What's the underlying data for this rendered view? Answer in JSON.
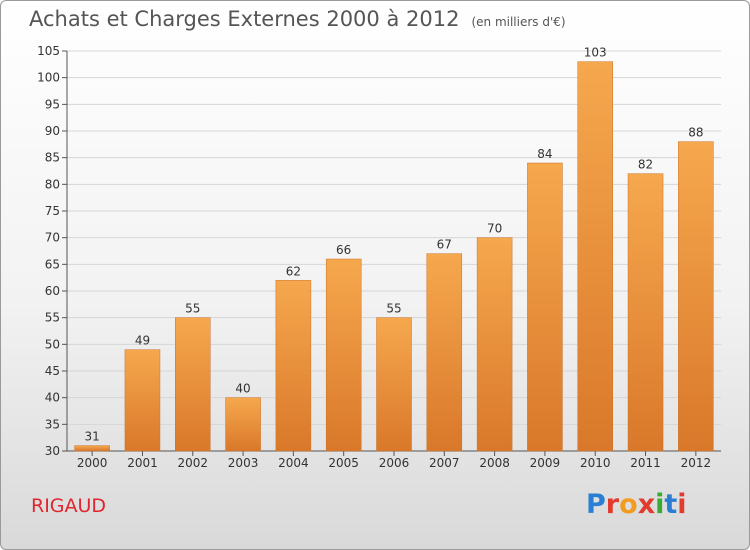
{
  "header": {
    "title": "Achats et Charges Externes 2000 à 2012",
    "unit": "(en milliers d'€)"
  },
  "footer": {
    "commune": "RIGAUD",
    "logo_text": "Proxiti",
    "logo_colors": [
      "#2a7fd4",
      "#e23b2e",
      "#f29b1e",
      "#e23b2e",
      "#3aa935",
      "#2a7fd4",
      "#e23b2e"
    ]
  },
  "colors": {
    "bar_light": "#f6a84e",
    "bar_dark": "#d9782a",
    "grid": "#d6d6d6"
  },
  "chart_data": {
    "type": "bar",
    "title": "Achats et Charges Externes 2000 à 2012",
    "subtitle": "(en milliers d'€)",
    "categories": [
      "2000",
      "2001",
      "2002",
      "2003",
      "2004",
      "2005",
      "2006",
      "2007",
      "2008",
      "2009",
      "2010",
      "2011",
      "2012"
    ],
    "values": [
      31,
      49,
      55,
      40,
      62,
      66,
      55,
      67,
      70,
      84,
      103,
      82,
      88
    ],
    "ylim": [
      30,
      105
    ],
    "yticks": [
      30,
      35,
      40,
      45,
      50,
      55,
      60,
      65,
      70,
      75,
      80,
      85,
      90,
      95,
      100,
      105
    ],
    "grid": true,
    "xlabel": "",
    "ylabel": ""
  }
}
